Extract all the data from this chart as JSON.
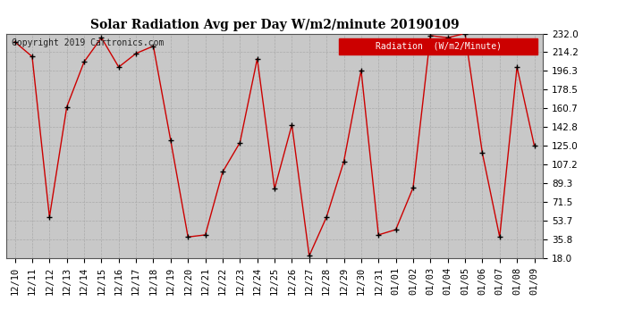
{
  "title": "Solar Radiation Avg per Day W/m2/minute 20190109",
  "copyright": "Copyright 2019 Cartronics.com",
  "legend_label": "Radiation  (W/m2/Minute)",
  "dates": [
    "12/10",
    "12/11",
    "12/12",
    "12/13",
    "12/14",
    "12/15",
    "12/16",
    "12/17",
    "12/18",
    "12/19",
    "12/20",
    "12/21",
    "12/22",
    "12/23",
    "12/24",
    "12/25",
    "12/26",
    "12/27",
    "12/28",
    "12/29",
    "12/30",
    "12/31",
    "01/01",
    "01/02",
    "01/03",
    "01/04",
    "01/05",
    "01/06",
    "01/07",
    "01/08",
    "01/09"
  ],
  "values": [
    224.0,
    210.0,
    57.0,
    162.0,
    205.0,
    228.0,
    200.0,
    213.0,
    220.0,
    130.0,
    38.0,
    40.0,
    100.0,
    128.0,
    208.0,
    84.0,
    145.0,
    20.0,
    57.0,
    110.0,
    197.0,
    40.0,
    45.0,
    85.0,
    230.0,
    228.0,
    232.0,
    118.0,
    38.0,
    200.0,
    125.0
  ],
  "ylim": [
    18.0,
    232.0
  ],
  "yticks": [
    18.0,
    35.8,
    53.7,
    71.5,
    89.3,
    107.2,
    125.0,
    142.8,
    160.7,
    178.5,
    196.3,
    214.2,
    232.0
  ],
  "line_color": "#cc0000",
  "marker_color": "#000000",
  "bg_color": "#ffffff",
  "plot_bg_color": "#c8c8c8",
  "grid_color": "#aaaaaa",
  "legend_bg": "#cc0000",
  "legend_text_color": "#ffffff",
  "title_fontsize": 10,
  "tick_fontsize": 7.5,
  "copyright_fontsize": 7
}
